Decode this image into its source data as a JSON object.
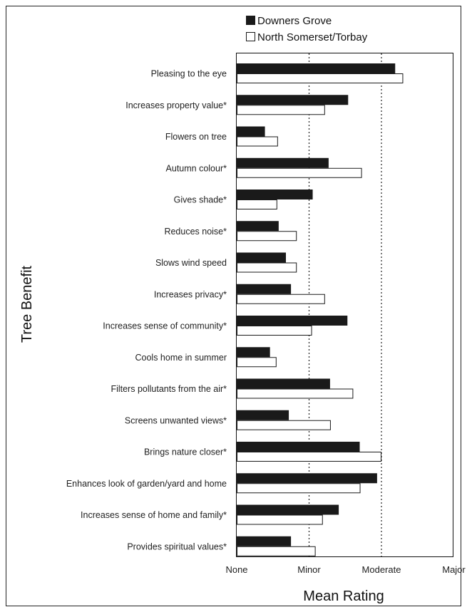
{
  "chart_data": {
    "type": "bar",
    "orientation": "horizontal",
    "title": "",
    "xlabel": "Mean Rating",
    "ylabel": "Tree Benefit",
    "xlim": [
      0,
      3
    ],
    "x_ticks": [
      "None",
      "Minor",
      "Moderate",
      "Major"
    ],
    "grid": "dotted vertical lines at Minor and Moderate",
    "legend_placement": "top-right",
    "categories": [
      "Pleasing to the eye",
      "Increases property value*",
      "Flowers on tree",
      "Autumn colour*",
      "Gives shade*",
      "Reduces noise*",
      "Slows wind speed",
      "Increases privacy*",
      "Increases sense of community*",
      "Cools home in summer",
      "Filters pollutants from the air*",
      "Screens unwanted views*",
      "Brings nature closer*",
      "Enhances look of garden/yard and home",
      "Increases sense of home and family*",
      "Provides spiritual values*"
    ],
    "series": [
      {
        "name": "Downers Grove",
        "color": "#1a1a1a",
        "values": [
          2.18,
          1.53,
          0.38,
          1.26,
          1.04,
          0.57,
          0.67,
          0.74,
          1.52,
          0.45,
          1.28,
          0.71,
          1.69,
          1.93,
          1.4,
          0.74
        ]
      },
      {
        "name": "North Somerset/Torbay",
        "color": "#ffffff",
        "values": [
          2.29,
          1.21,
          0.56,
          1.72,
          0.55,
          0.82,
          0.82,
          1.21,
          1.03,
          0.54,
          1.6,
          1.29,
          1.99,
          1.7,
          1.18,
          1.08
        ]
      }
    ]
  }
}
